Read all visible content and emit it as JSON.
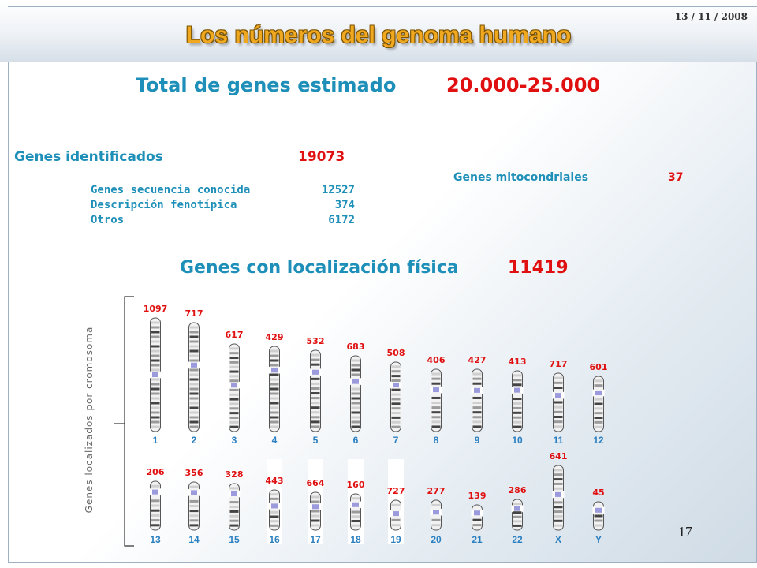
{
  "header": {
    "date": "13 / 11 / 2008",
    "title": "Los números del genoma humano"
  },
  "total": {
    "label": "Total de genes estimado",
    "value": "20.000-25.000"
  },
  "identified": {
    "label": "Genes identificados",
    "value": "19073",
    "rows": [
      {
        "label": "Genes secuencia conocida",
        "value": "12527"
      },
      {
        "label": "Descripción fenotípica",
        "value": "374"
      },
      {
        "label": "Otros",
        "value": "6172"
      }
    ]
  },
  "mitochondrial": {
    "label": "Genes mitocondriales",
    "value": "37"
  },
  "localized": {
    "label": "Genes con localización física",
    "value": "11419"
  },
  "axis_label": "Genes localizados por cromosoma",
  "chromosomes": [
    {
      "name": "1",
      "count": "1097"
    },
    {
      "name": "2",
      "count": "717"
    },
    {
      "name": "3",
      "count": "617"
    },
    {
      "name": "4",
      "count": "429"
    },
    {
      "name": "5",
      "count": "532"
    },
    {
      "name": "6",
      "count": "683"
    },
    {
      "name": "7",
      "count": "508"
    },
    {
      "name": "8",
      "count": "406"
    },
    {
      "name": "9",
      "count": "427"
    },
    {
      "name": "10",
      "count": "413"
    },
    {
      "name": "11",
      "count": "717"
    },
    {
      "name": "12",
      "count": "601"
    },
    {
      "name": "13",
      "count": "206"
    },
    {
      "name": "14",
      "count": "356"
    },
    {
      "name": "15",
      "count": "328"
    },
    {
      "name": "16",
      "count": "443"
    },
    {
      "name": "17",
      "count": "664"
    },
    {
      "name": "18",
      "count": "160"
    },
    {
      "name": "19",
      "count": "727"
    },
    {
      "name": "20",
      "count": "277"
    },
    {
      "name": "21",
      "count": "139"
    },
    {
      "name": "22",
      "count": "286"
    },
    {
      "name": "X",
      "count": "641"
    },
    {
      "name": "Y",
      "count": "45"
    }
  ],
  "page_number": "17",
  "colors": {
    "teal": "#1e8fb8",
    "red": "#e01010",
    "orange": "#f0a820",
    "label_blue": "#2a7fc0",
    "centromere": "#9a9adc"
  }
}
